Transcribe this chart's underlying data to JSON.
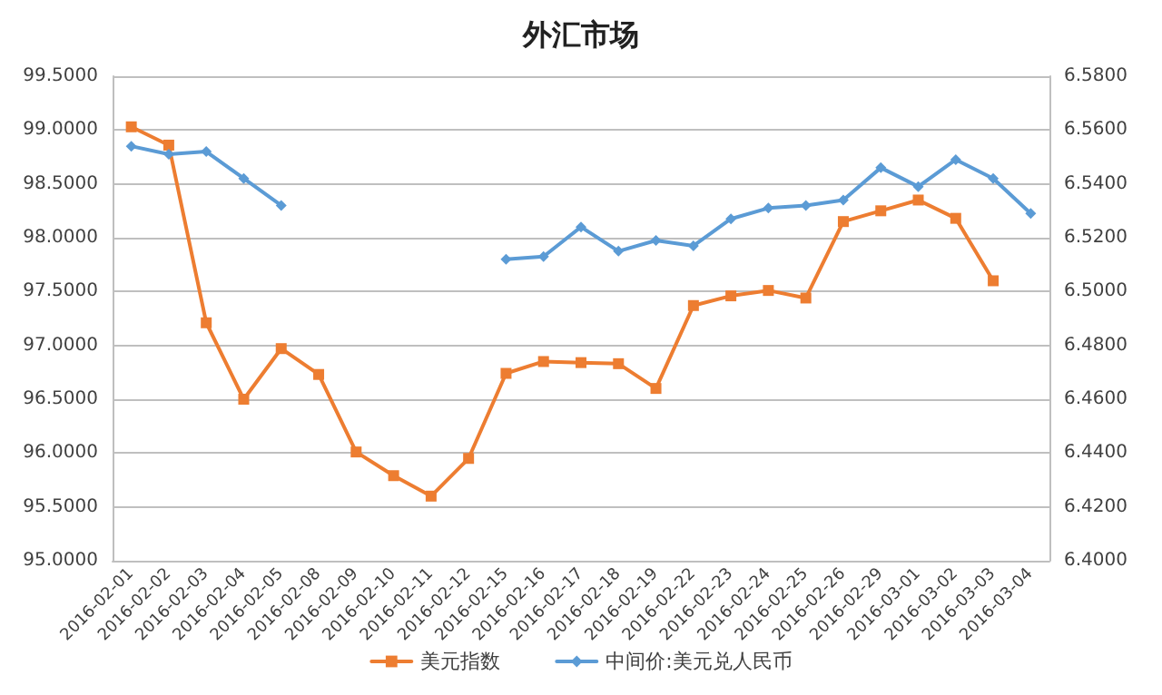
{
  "chart_data": {
    "type": "line",
    "title": "外汇市场",
    "categories": [
      "2016-02-01",
      "2016-02-02",
      "2016-02-03",
      "2016-02-04",
      "2016-02-05",
      "2016-02-08",
      "2016-02-09",
      "2016-02-10",
      "2016-02-11",
      "2016-02-12",
      "2016-02-15",
      "2016-02-16",
      "2016-02-17",
      "2016-02-18",
      "2016-02-19",
      "2016-02-22",
      "2016-02-23",
      "2016-02-24",
      "2016-02-25",
      "2016-02-26",
      "2016-02-29",
      "2016-03-01",
      "2016-03-02",
      "2016-03-03",
      "2016-03-04"
    ],
    "series": [
      {
        "name": "美元指数",
        "color": "#ed7d31",
        "marker": "square",
        "values": [
          99.03,
          98.86,
          97.21,
          96.5,
          96.97,
          96.73,
          96.01,
          95.79,
          95.6,
          95.95,
          96.74,
          96.85,
          96.84,
          96.83,
          96.6,
          97.37,
          97.46,
          97.51,
          97.44,
          98.15,
          98.25,
          98.35,
          98.18,
          97.6,
          null
        ]
      },
      {
        "name": "中间价:美元兑人民币",
        "color": "#5b9bd5",
        "marker": "diamond",
        "axis": "y2",
        "values": [
          6.554,
          6.551,
          6.552,
          6.542,
          6.532,
          null,
          null,
          null,
          null,
          null,
          6.512,
          6.513,
          6.524,
          6.515,
          6.519,
          6.517,
          6.527,
          6.531,
          6.532,
          6.534,
          6.546,
          6.539,
          6.549,
          6.542,
          6.529
        ]
      }
    ],
    "ylim": [
      95,
      99.5
    ],
    "yticks": [
      {
        "value": 95,
        "label": "95.0000"
      },
      {
        "value": 95.5,
        "label": "95.5000"
      },
      {
        "value": 96,
        "label": "96.0000"
      },
      {
        "value": 96.5,
        "label": "96.5000"
      },
      {
        "value": 97,
        "label": "97.0000"
      },
      {
        "value": 97.5,
        "label": "97.5000"
      },
      {
        "value": 98,
        "label": "98.0000"
      },
      {
        "value": 98.5,
        "label": "98.5000"
      },
      {
        "value": 99,
        "label": "99.0000"
      },
      {
        "value": 99.5,
        "label": "99.5000"
      }
    ],
    "y2lim": [
      6.4,
      6.58
    ],
    "y2ticks": [
      {
        "value": 6.4,
        "label": "6.4000"
      },
      {
        "value": 6.42,
        "label": "6.4200"
      },
      {
        "value": 6.44,
        "label": "6.4400"
      },
      {
        "value": 6.46,
        "label": "6.4600"
      },
      {
        "value": 6.48,
        "label": "6.4800"
      },
      {
        "value": 6.5,
        "label": "6.5000"
      },
      {
        "value": 6.52,
        "label": "6.5200"
      },
      {
        "value": 6.54,
        "label": "6.5400"
      },
      {
        "value": 6.56,
        "label": "6.5600"
      },
      {
        "value": 6.58,
        "label": "6.5800"
      }
    ],
    "grid": "y",
    "legend": "bottom",
    "line_style": "solid"
  }
}
